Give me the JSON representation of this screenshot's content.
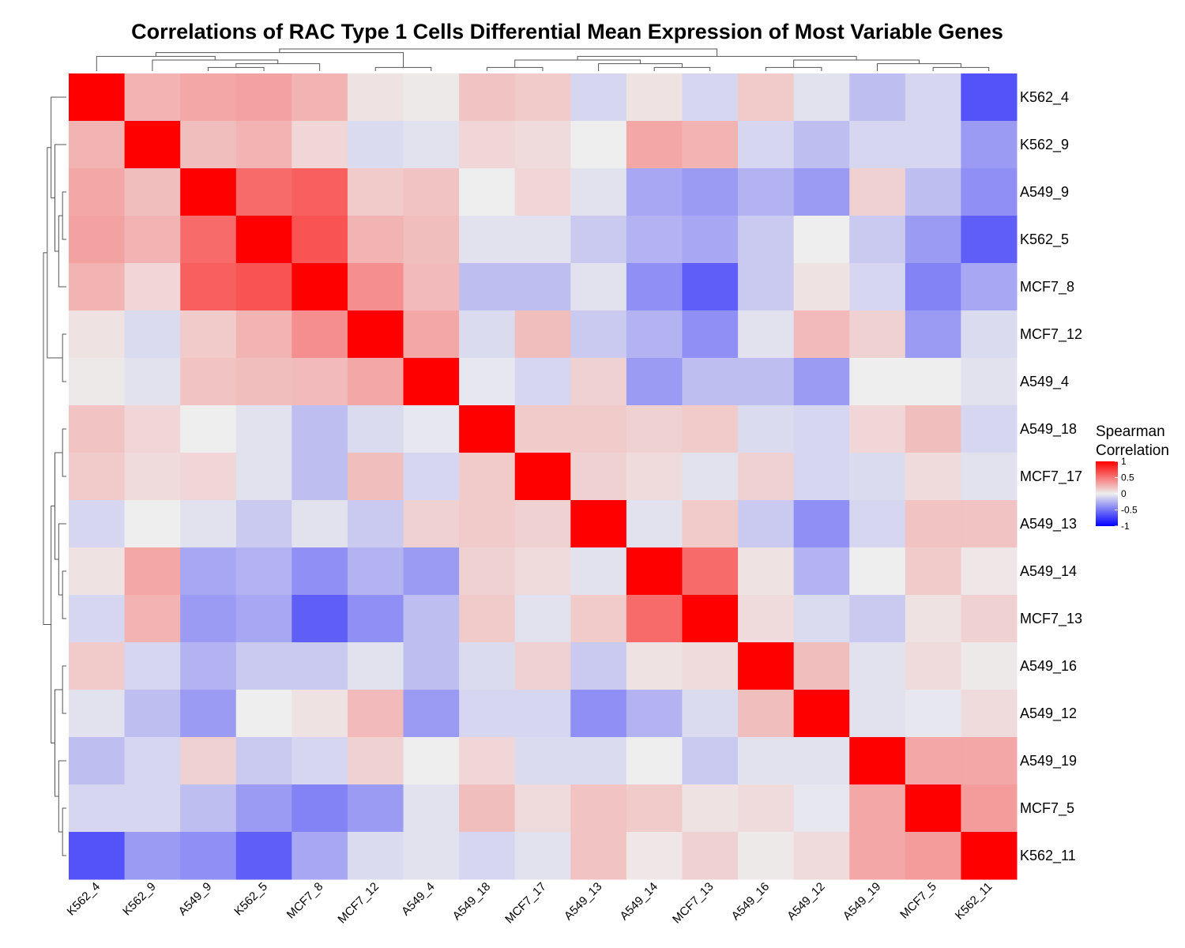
{
  "chart_data": {
    "type": "heatmap",
    "title": "Correlations of RAC Type 1 Cells Differential Mean Expression of Most Variable Genes",
    "rows": [
      "K562_4",
      "K562_9",
      "A549_9",
      "K562_5",
      "MCF7_8",
      "MCF7_12",
      "A549_4",
      "A549_18",
      "MCF7_17",
      "A549_13",
      "A549_14",
      "MCF7_13",
      "A549_16",
      "A549_12",
      "A549_19",
      "MCF7_5",
      "K562_11"
    ],
    "columns": [
      "K562_4",
      "K562_9",
      "A549_9",
      "K562_5",
      "MCF7_8",
      "MCF7_12",
      "A549_4",
      "A549_18",
      "MCF7_17",
      "A549_13",
      "A549_14",
      "MCF7_13",
      "A549_16",
      "A549_12",
      "A549_19",
      "MCF7_5",
      "K562_11"
    ],
    "values": [
      [
        1.0,
        0.25,
        0.3,
        0.32,
        0.25,
        0.05,
        0.02,
        0.18,
        0.15,
        -0.1,
        0.05,
        -0.1,
        0.15,
        -0.05,
        -0.2,
        -0.1,
        -0.65
      ],
      [
        0.25,
        1.0,
        0.2,
        0.25,
        0.1,
        -0.08,
        -0.05,
        0.1,
        0.08,
        0.0,
        0.3,
        0.25,
        -0.1,
        -0.2,
        -0.1,
        -0.1,
        -0.35
      ],
      [
        0.3,
        0.2,
        1.0,
        0.55,
        0.6,
        0.15,
        0.18,
        0.0,
        0.1,
        -0.05,
        -0.3,
        -0.35,
        -0.25,
        -0.35,
        0.12,
        -0.2,
        -0.4
      ],
      [
        0.32,
        0.25,
        0.55,
        1.0,
        0.65,
        0.25,
        0.2,
        -0.05,
        -0.05,
        -0.15,
        -0.25,
        -0.3,
        -0.15,
        0.0,
        -0.15,
        -0.35,
        -0.6
      ],
      [
        0.25,
        0.1,
        0.6,
        0.65,
        1.0,
        0.4,
        0.22,
        -0.2,
        -0.2,
        -0.05,
        -0.4,
        -0.6,
        -0.15,
        0.05,
        -0.1,
        -0.45,
        -0.3
      ],
      [
        0.05,
        -0.08,
        0.15,
        0.25,
        0.4,
        1.0,
        0.3,
        -0.08,
        0.2,
        -0.15,
        -0.25,
        -0.4,
        -0.05,
        0.22,
        0.12,
        -0.35,
        -0.08
      ],
      [
        0.02,
        -0.05,
        0.18,
        0.2,
        0.22,
        0.3,
        1.0,
        -0.03,
        -0.1,
        0.12,
        -0.35,
        -0.2,
        -0.2,
        -0.35,
        0.0,
        0.0,
        -0.05
      ],
      [
        0.18,
        0.1,
        0.0,
        -0.05,
        -0.2,
        -0.08,
        -0.03,
        1.0,
        0.15,
        0.15,
        0.12,
        0.15,
        -0.08,
        -0.1,
        0.1,
        0.2,
        -0.1
      ],
      [
        0.15,
        0.08,
        0.1,
        -0.05,
        -0.2,
        0.2,
        -0.1,
        0.15,
        1.0,
        0.12,
        0.08,
        -0.05,
        0.12,
        -0.1,
        -0.08,
        0.08,
        -0.05
      ],
      [
        -0.1,
        0.0,
        -0.05,
        -0.15,
        -0.05,
        -0.15,
        0.12,
        0.15,
        0.12,
        1.0,
        -0.05,
        0.15,
        -0.15,
        -0.4,
        -0.1,
        0.18,
        0.18
      ],
      [
        0.05,
        0.3,
        -0.3,
        -0.25,
        -0.4,
        -0.25,
        -0.35,
        0.12,
        0.08,
        -0.05,
        1.0,
        0.55,
        0.05,
        -0.25,
        0.0,
        0.15,
        0.03
      ],
      [
        -0.1,
        0.25,
        -0.35,
        -0.3,
        -0.6,
        -0.4,
        -0.2,
        0.15,
        -0.05,
        0.15,
        0.55,
        1.0,
        0.08,
        -0.08,
        -0.15,
        0.05,
        0.12
      ],
      [
        0.15,
        -0.1,
        -0.25,
        -0.15,
        -0.15,
        -0.05,
        -0.2,
        -0.08,
        0.12,
        -0.15,
        0.05,
        0.08,
        1.0,
        0.2,
        -0.05,
        0.08,
        0.02
      ],
      [
        -0.05,
        -0.2,
        -0.35,
        0.0,
        0.05,
        0.22,
        -0.35,
        -0.1,
        -0.1,
        -0.4,
        -0.25,
        -0.08,
        0.2,
        1.0,
        -0.05,
        -0.03,
        0.08
      ],
      [
        -0.2,
        -0.1,
        0.12,
        -0.15,
        -0.1,
        0.12,
        0.0,
        0.1,
        -0.08,
        -0.08,
        0.0,
        -0.15,
        -0.05,
        -0.05,
        1.0,
        0.3,
        0.3
      ],
      [
        -0.1,
        -0.1,
        -0.2,
        -0.35,
        -0.45,
        -0.35,
        -0.05,
        0.2,
        0.08,
        0.18,
        0.15,
        0.05,
        0.08,
        -0.03,
        0.3,
        1.0,
        0.35
      ],
      [
        -0.65,
        -0.35,
        -0.4,
        -0.6,
        -0.3,
        -0.08,
        -0.05,
        -0.1,
        -0.05,
        0.18,
        0.03,
        0.12,
        0.02,
        0.08,
        0.3,
        0.35,
        1.0
      ]
    ],
    "colorscale": {
      "low": "#0000ff",
      "mid": "#eeeeee",
      "high": "#ff0000"
    },
    "range": [
      -1,
      1
    ],
    "legend": {
      "title_line1": "Spearman",
      "title_line2": "Correlation",
      "ticks": [
        "1",
        "0.5",
        "0",
        "-0.5",
        "-1"
      ],
      "tick_values": [
        1,
        0.5,
        0,
        -0.5,
        -1
      ],
      "position": "right"
    }
  }
}
